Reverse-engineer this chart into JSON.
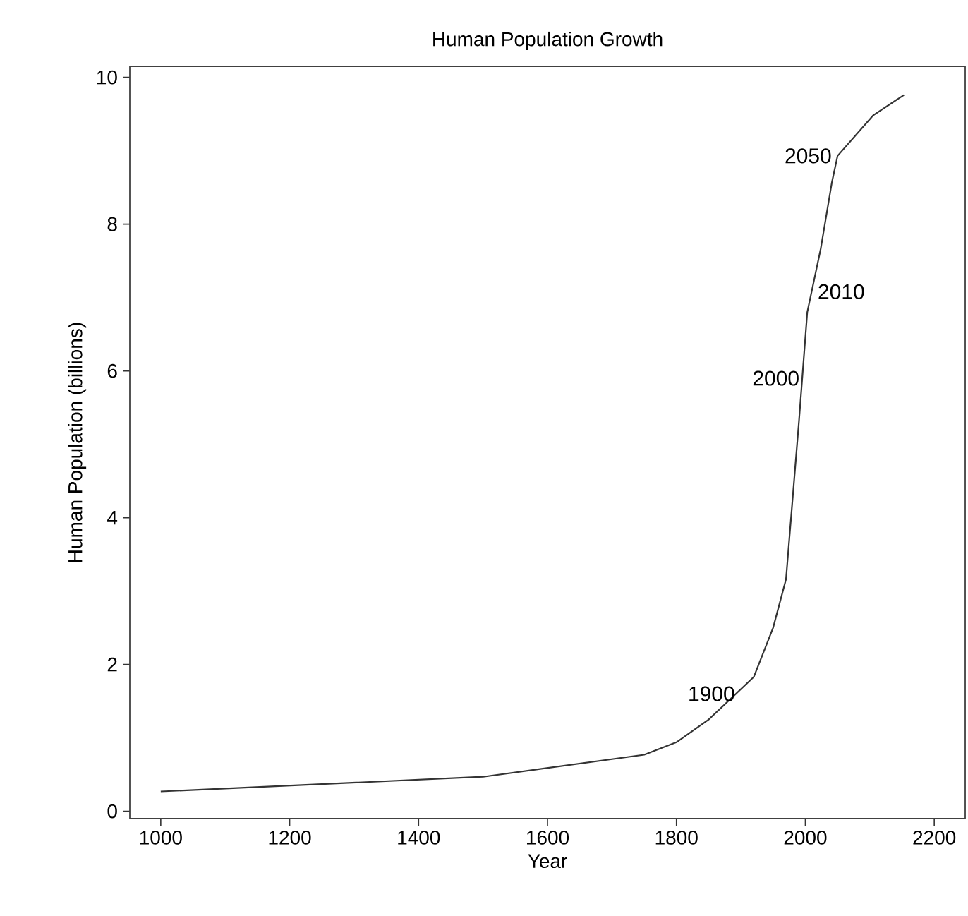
{
  "chart_data": {
    "type": "line",
    "title": "Human Population Growth",
    "xlabel": "Year",
    "ylabel": "Human Population (billions)",
    "x": [
      1000,
      1500,
      1750,
      1800,
      1850,
      1920,
      1950,
      1970,
      1990,
      2003,
      2024,
      2041,
      2050,
      2105,
      2153
    ],
    "values": [
      0.27,
      0.47,
      0.77,
      0.94,
      1.25,
      1.83,
      2.5,
      3.16,
      5.3,
      6.8,
      7.67,
      8.56,
      8.93,
      9.48,
      9.76
    ],
    "color": "#333333",
    "xlim": [
      952,
      2248
    ],
    "ylim": [
      -0.1,
      10.15
    ],
    "xticks": [
      1000,
      1200,
      1400,
      1600,
      1800,
      2000,
      2200
    ],
    "yticks": [
      0,
      2,
      4,
      6,
      8,
      10
    ],
    "grid": false,
    "marker": "none",
    "line_style": "solid",
    "annotations": [
      {
        "text": "1900",
        "x": 1900,
        "y": 1.6
      },
      {
        "text": "2000",
        "x": 2000,
        "y": 5.9
      },
      {
        "text": "2010",
        "x": 2010,
        "y": 7.08
      },
      {
        "text": "2050",
        "x": 2050,
        "y": 8.93
      }
    ]
  }
}
